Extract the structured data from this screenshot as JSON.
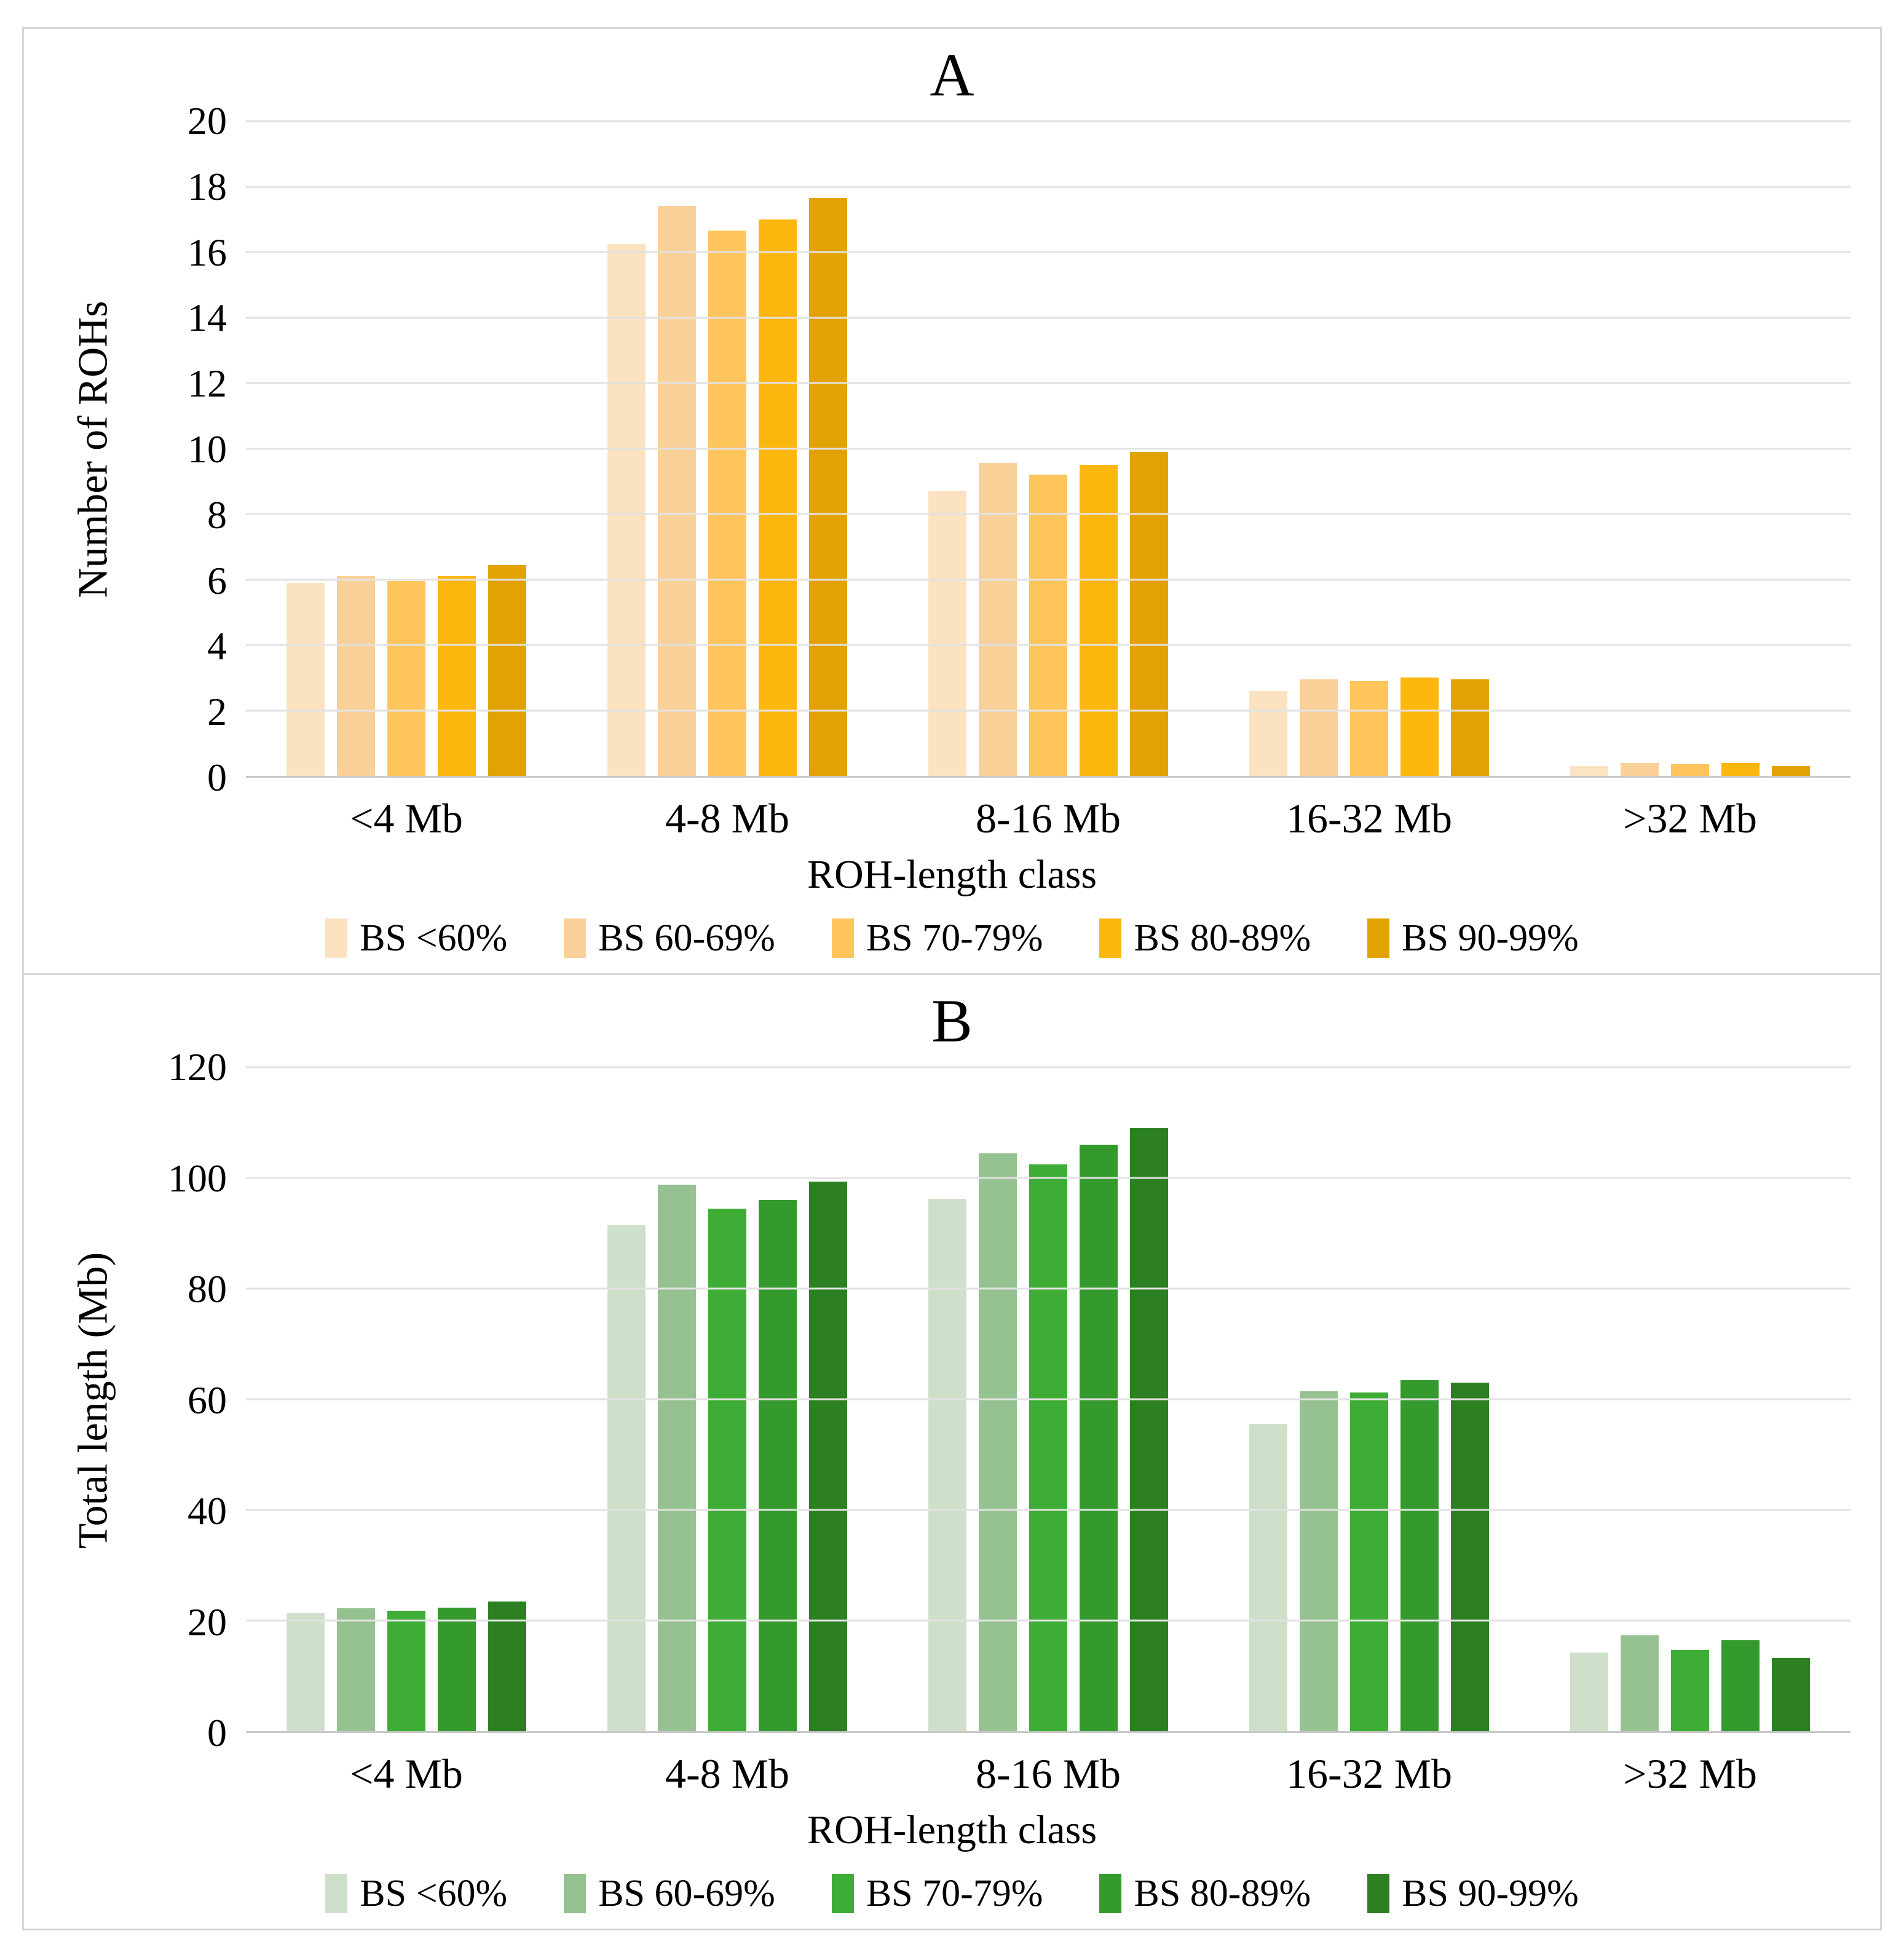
{
  "figure": {
    "border_color": "#d6d6d6",
    "gridline_color": "#e2e2e2",
    "axis_line_color": "#c7c7c7",
    "background": "#ffffff"
  },
  "chart_data": [
    {
      "type": "bar",
      "title": "A",
      "xlabel": "ROH-length class",
      "ylabel": "Number of ROHs",
      "ylim": [
        0,
        20
      ],
      "yticks": [
        "20",
        "18",
        "16",
        "14",
        "12",
        "10",
        "8",
        "6",
        "4",
        "2",
        "0"
      ],
      "grid": true,
      "legend_position": "bottom",
      "categories": [
        "<4 Mb",
        "4-8 Mb",
        "8-16 Mb",
        "16-32 Mb",
        ">32 Mb"
      ],
      "series": [
        {
          "name": "BS <60%",
          "color": "#fbe3c2",
          "values": [
            5.9,
            16.25,
            8.7,
            2.6,
            0.3
          ]
        },
        {
          "name": "BS 60-69%",
          "color": "#fad099",
          "values": [
            6.1,
            17.4,
            9.55,
            2.95,
            0.4
          ]
        },
        {
          "name": "BS 70-79%",
          "color": "#fdc55b",
          "values": [
            5.95,
            16.65,
            9.2,
            2.9,
            0.35
          ]
        },
        {
          "name": "BS 80-89%",
          "color": "#fcb70f",
          "values": [
            6.1,
            17.0,
            9.5,
            3.0,
            0.4
          ]
        },
        {
          "name": "BS 90-99%",
          "color": "#e2a202",
          "values": [
            6.45,
            17.65,
            9.9,
            2.95,
            0.3
          ]
        }
      ]
    },
    {
      "type": "bar",
      "title": "B",
      "xlabel": "ROH-length class",
      "ylabel": "Total length (Mb)",
      "ylim": [
        0,
        120
      ],
      "yticks": [
        "120",
        "100",
        "80",
        "60",
        "40",
        "20",
        "0"
      ],
      "grid": true,
      "legend_position": "bottom",
      "categories": [
        "<4 Mb",
        "4-8 Mb",
        "8-16 Mb",
        "16-32 Mb",
        ">32 Mb"
      ],
      "series": [
        {
          "name": "BS <60%",
          "color": "#cfe0ca",
          "values": [
            21.3,
            91.5,
            96.2,
            55.6,
            14.2
          ]
        },
        {
          "name": "BS 60-69%",
          "color": "#96c291",
          "values": [
            22.2,
            98.8,
            104.5,
            61.5,
            17.3
          ]
        },
        {
          "name": "BS 70-79%",
          "color": "#3ead36",
          "values": [
            21.8,
            94.5,
            102.5,
            61.2,
            14.7
          ]
        },
        {
          "name": "BS 80-89%",
          "color": "#359a2e",
          "values": [
            22.3,
            96.0,
            106.0,
            63.4,
            16.4
          ]
        },
        {
          "name": "BS 90-99%",
          "color": "#2d8022",
          "values": [
            23.5,
            99.3,
            109.0,
            63.0,
            13.2
          ]
        }
      ]
    }
  ]
}
